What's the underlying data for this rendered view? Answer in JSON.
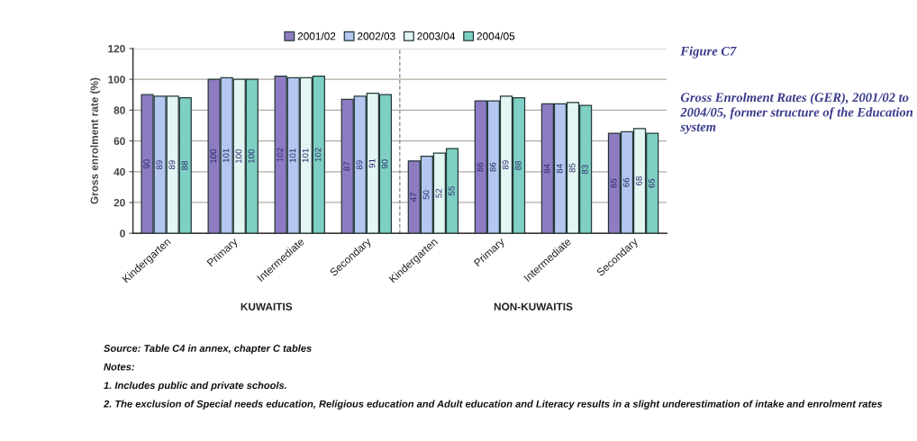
{
  "chart_data": [
    {
      "type": "bar",
      "xlabel": "KUWAITIS",
      "ylabel": "Gross enrolment rate (%)",
      "categories": [
        "Kindergarten",
        "Primary",
        "Intermediate",
        "Secondary"
      ],
      "series": [
        {
          "name": "2001/02",
          "color": "#8e7cc3",
          "values": [
            90,
            100,
            102,
            87
          ]
        },
        {
          "name": "2002/03",
          "color": "#b4c7f0",
          "values": [
            89,
            101,
            101,
            89
          ]
        },
        {
          "name": "2003/04",
          "color": "#e4f6f4",
          "values": [
            89,
            100,
            101,
            91
          ]
        },
        {
          "name": "2004/05",
          "color": "#7fd0c4",
          "values": [
            88,
            100,
            102,
            90
          ]
        }
      ],
      "ylim": [
        0,
        120
      ],
      "yticks": [
        0,
        20,
        40,
        60,
        80,
        100,
        120
      ],
      "grid": "y",
      "legend": "top",
      "data_labels": true,
      "annotations": [
        "Source: Table C4 in annex, chapter C tables",
        "Notes:",
        "1. Includes public and private schools.",
        "2. The exclusion of Special needs education, Religious education and Adult education and Literacy results in a slight underestimation of intake and enrolment rates"
      ]
    },
    {
      "type": "bar",
      "xlabel": "NON-KUWAITIS",
      "categories": [
        "Kindergarten",
        "Primary",
        "Intermediate",
        "Secondary"
      ],
      "series": [
        {
          "color": "#8e7cc3",
          "values": [
            47,
            86,
            84,
            65
          ]
        },
        {
          "color": "#b4c7f0",
          "values": [
            50,
            86,
            84,
            66
          ]
        },
        {
          "color": "#e4f6f4",
          "values": [
            52,
            89,
            85,
            68
          ]
        },
        {
          "color": "#7fd0c4",
          "values": [
            55,
            88,
            83,
            65
          ]
        }
      ],
      "ylim": [
        0,
        120
      ],
      "yticks": [
        0,
        20,
        40,
        60,
        80,
        100,
        120
      ],
      "grid": "y",
      "data_labels": true,
      "tick_labels": "x"
    },
    {
      "type": "other",
      "title": "Figure C7",
      "subtitle": "Gross Enrolment Rates (GER), 2001/02 to 2004/05, former structure of the Education system"
    }
  ]
}
